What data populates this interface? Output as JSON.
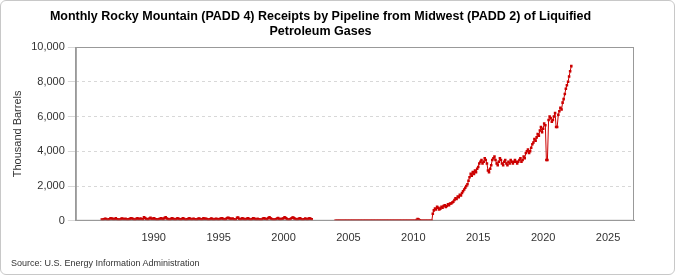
{
  "chart_data": {
    "type": "line",
    "title": [
      "Monthly Rocky Mountain (PADD 4) Receipts by Pipeline from Midwest (PADD 2) of Liquified",
      "Petroleum Gases"
    ],
    "y_label": "Thousand Barrels",
    "annotation": "Source: U.S. Energy Information Administration",
    "color": "#cc0000",
    "marker": "square",
    "line_style": "solid",
    "grid": true,
    "xlim": [
      1984,
      2027
    ],
    "xticks": [
      1990,
      1995,
      2000,
      2005,
      2010,
      2015,
      2020,
      2025
    ],
    "ylim": [
      0,
      10000
    ],
    "yticks": [
      0,
      {
        "value": 2000,
        "label": "2,000"
      },
      {
        "value": 4000,
        "label": "4,000"
      },
      {
        "value": 6000,
        "label": "6,000"
      },
      {
        "value": 8000,
        "label": "8,000"
      },
      {
        "value": 10000,
        "label": "10,000"
      }
    ],
    "x": [
      1986,
      1986.08,
      1986.17,
      1986.25,
      1986.33,
      1986.42,
      1986.5,
      1986.58,
      1986.67,
      1986.75,
      1986.83,
      1986.92,
      1987,
      1987.08,
      1987.17,
      1987.25,
      1987.33,
      1987.42,
      1987.5,
      1987.58,
      1987.67,
      1987.75,
      1987.83,
      1987.92,
      1988,
      1988.08,
      1988.17,
      1988.25,
      1988.33,
      1988.42,
      1988.5,
      1988.58,
      1988.67,
      1988.75,
      1988.83,
      1988.92,
      1989,
      1989.08,
      1989.17,
      1989.25,
      1989.33,
      1989.42,
      1989.5,
      1989.58,
      1989.67,
      1989.75,
      1989.83,
      1989.92,
      1990,
      1990.08,
      1990.17,
      1990.25,
      1990.33,
      1990.42,
      1990.5,
      1990.58,
      1990.67,
      1990.75,
      1990.83,
      1990.92,
      1991,
      1991.08,
      1991.17,
      1991.25,
      1991.33,
      1991.42,
      1991.5,
      1991.58,
      1991.67,
      1991.75,
      1991.83,
      1991.92,
      1992,
      1992.08,
      1992.17,
      1992.25,
      1992.33,
      1992.42,
      1992.5,
      1992.58,
      1992.67,
      1992.75,
      1992.83,
      1992.92,
      1993,
      1993.08,
      1993.17,
      1993.25,
      1993.33,
      1993.42,
      1993.5,
      1993.58,
      1993.67,
      1993.75,
      1993.83,
      1993.92,
      1994,
      1994.08,
      1994.17,
      1994.25,
      1994.33,
      1994.42,
      1994.5,
      1994.58,
      1994.67,
      1994.75,
      1994.83,
      1994.92,
      1995,
      1995.08,
      1995.17,
      1995.25,
      1995.33,
      1995.42,
      1995.5,
      1995.58,
      1995.67,
      1995.75,
      1995.83,
      1995.92,
      1996,
      1996.08,
      1996.17,
      1996.25,
      1996.33,
      1996.42,
      1996.5,
      1996.58,
      1996.67,
      1996.75,
      1996.83,
      1996.92,
      1997,
      1997.08,
      1997.17,
      1997.25,
      1997.33,
      1997.42,
      1997.5,
      1997.58,
      1997.67,
      1997.75,
      1997.83,
      1997.92,
      1998,
      1998.08,
      1998.17,
      1998.25,
      1998.33,
      1998.42,
      1998.5,
      1998.58,
      1998.67,
      1998.75,
      1998.83,
      1998.92,
      1999,
      1999.08,
      1999.17,
      1999.25,
      1999.33,
      1999.42,
      1999.5,
      1999.58,
      1999.67,
      1999.75,
      1999.83,
      1999.92,
      2000,
      2000.08,
      2000.17,
      2000.25,
      2000.33,
      2000.42,
      2000.5,
      2000.58,
      2000.67,
      2000.75,
      2000.83,
      2000.92,
      2001,
      2001.08,
      2001.17,
      2001.25,
      2001.33,
      2001.42,
      2001.5,
      2001.58,
      2001.67,
      2001.75,
      2001.83,
      2001.92,
      2002,
      2002.08,
      2002.17,
      2002.25,
      2002.33,
      2002.42,
      2002.5,
      2002.58,
      2002.67,
      2002.75,
      2002.83,
      2002.92,
      2003,
      2003.08,
      2003.17,
      2003.25,
      2003.33,
      2003.42,
      2003.5,
      2003.58,
      2003.67,
      2003.75,
      2003.83,
      2003.92,
      2004,
      2004.08,
      2004.17,
      2004.25,
      2004.33,
      2004.42,
      2004.5,
      2004.58,
      2004.67,
      2004.75,
      2004.83,
      2004.92,
      2005,
      2005.08,
      2005.17,
      2005.25,
      2005.33,
      2005.42,
      2005.5,
      2005.58,
      2005.67,
      2005.75,
      2005.83,
      2005.92,
      2006,
      2006.08,
      2006.17,
      2006.25,
      2006.33,
      2006.42,
      2006.5,
      2006.58,
      2006.67,
      2006.75,
      2006.83,
      2006.92,
      2007,
      2007.08,
      2007.17,
      2007.25,
      2007.33,
      2007.42,
      2007.5,
      2007.58,
      2007.67,
      2007.75,
      2007.83,
      2007.92,
      2008,
      2008.08,
      2008.17,
      2008.25,
      2008.33,
      2008.42,
      2008.5,
      2008.58,
      2008.67,
      2008.75,
      2008.83,
      2008.92,
      2009,
      2009.08,
      2009.17,
      2009.25,
      2009.33,
      2009.42,
      2009.5,
      2009.58,
      2009.67,
      2009.75,
      2009.83,
      2009.92,
      2010,
      2010.08,
      2010.17,
      2010.25,
      2010.33,
      2010.42,
      2010.5,
      2010.58,
      2010.67,
      2010.75,
      2010.83,
      2010.92,
      2011,
      2011.08,
      2011.17,
      2011.25,
      2011.33,
      2011.42,
      2011.5,
      2011.58,
      2011.67,
      2011.75,
      2011.83,
      2011.92,
      2012,
      2012.08,
      2012.17,
      2012.25,
      2012.33,
      2012.42,
      2012.5,
      2012.58,
      2012.67,
      2012.75,
      2012.83,
      2012.92,
      2013,
      2013.08,
      2013.17,
      2013.25,
      2013.33,
      2013.42,
      2013.5,
      2013.58,
      2013.67,
      2013.75,
      2013.83,
      2013.92,
      2014,
      2014.08,
      2014.17,
      2014.25,
      2014.33,
      2014.42,
      2014.5,
      2014.58,
      2014.67,
      2014.75,
      2014.83,
      2014.92,
      2015,
      2015.08,
      2015.17,
      2015.25,
      2015.33,
      2015.42,
      2015.5,
      2015.58,
      2015.67,
      2015.75,
      2015.83,
      2015.92,
      2016,
      2016.08,
      2016.17,
      2016.25,
      2016.33,
      2016.42,
      2016.5,
      2016.58,
      2016.67,
      2016.75,
      2016.83,
      2016.92,
      2017,
      2017.08,
      2017.17,
      2017.25,
      2017.33,
      2017.42,
      2017.5,
      2017.58,
      2017.67,
      2017.75,
      2017.83,
      2017.92,
      2018,
      2018.08,
      2018.17,
      2018.25,
      2018.33,
      2018.42,
      2018.5,
      2018.58,
      2018.67,
      2018.75,
      2018.83,
      2018.92,
      2019,
      2019.08,
      2019.17,
      2019.25,
      2019.33,
      2019.42,
      2019.5,
      2019.58,
      2019.67,
      2019.75,
      2019.83,
      2019.92,
      2020,
      2020.08,
      2020.17,
      2020.25,
      2020.33,
      2020.42,
      2020.5,
      2020.58,
      2020.67,
      2020.75,
      2020.83,
      2020.92,
      2021,
      2021.08,
      2021.17,
      2021.25,
      2021.33,
      2021.42,
      2021.5,
      2021.58,
      2021.67,
      2021.75,
      2021.83,
      2021.92,
      2022,
      2022.08,
      2022.17
    ],
    "values": [
      80,
      60,
      90,
      120,
      100,
      70,
      50,
      90,
      150,
      130,
      110,
      90,
      100,
      140,
      90,
      70,
      60,
      80,
      110,
      130,
      100,
      90,
      120,
      80,
      70,
      90,
      110,
      150,
      130,
      100,
      80,
      60,
      120,
      140,
      90,
      110,
      120,
      100,
      80,
      200,
      160,
      110,
      90,
      70,
      130,
      180,
      120,
      100,
      150,
      110,
      90,
      80,
      70,
      100,
      120,
      140,
      110,
      90,
      160,
      200,
      130,
      100,
      80,
      70,
      110,
      140,
      120,
      90,
      80,
      100,
      150,
      120,
      90,
      80,
      100,
      140,
      120,
      70,
      60,
      90,
      110,
      150,
      100,
      80,
      100,
      120,
      90,
      70,
      80,
      110,
      130,
      100,
      80,
      90,
      140,
      110,
      120,
      100,
      80,
      60,
      90,
      130,
      110,
      80,
      70,
      100,
      120,
      90,
      80,
      100,
      130,
      150,
      120,
      90,
      70,
      110,
      160,
      180,
      140,
      110,
      100,
      130,
      90,
      60,
      80,
      170,
      190,
      120,
      80,
      100,
      140,
      110,
      90,
      80,
      120,
      150,
      110,
      70,
      60,
      100,
      140,
      130,
      90,
      80,
      110,
      90,
      70,
      60,
      80,
      130,
      150,
      120,
      100,
      80,
      160,
      200,
      140,
      100,
      80,
      60,
      70,
      90,
      130,
      160,
      110,
      90,
      100,
      120,
      150,
      200,
      160,
      110,
      80,
      60,
      90,
      130,
      170,
      190,
      140,
      100,
      90,
      80,
      120,
      150,
      110,
      70,
      60,
      90,
      130,
      100,
      80,
      110,
      140,
      120,
      90,
      null,
      null,
      null,
      null,
      null,
      null,
      null,
      null,
      null,
      null,
      null,
      null,
      null,
      null,
      null,
      null,
      null,
      null,
      null,
      null,
      null,
      0,
      0,
      0,
      0,
      0,
      0,
      0,
      0,
      0,
      0,
      0,
      0,
      0,
      0,
      0,
      0,
      0,
      0,
      0,
      0,
      0,
      0,
      0,
      0,
      0,
      0,
      0,
      0,
      0,
      0,
      0,
      0,
      0,
      0,
      0,
      0,
      0,
      0,
      0,
      0,
      0,
      0,
      0,
      0,
      0,
      0,
      0,
      0,
      0,
      0,
      0,
      0,
      0,
      0,
      0,
      0,
      0,
      0,
      0,
      0,
      0,
      0,
      0,
      0,
      0,
      0,
      0,
      0,
      0,
      0,
      0,
      0,
      0,
      0,
      0,
      50,
      100,
      80,
      30,
      0,
      0,
      0,
      0,
      0,
      0,
      0,
      0,
      0,
      0,
      0,
      400,
      600,
      700,
      650,
      800,
      750,
      650,
      700,
      800,
      750,
      850,
      900,
      800,
      850,
      950,
      900,
      1000,
      1000,
      1050,
      1100,
      1200,
      1300,
      1250,
      1400,
      1350,
      1500,
      1450,
      1600,
      1700,
      1800,
      1900,
      2000,
      2100,
      2300,
      2500,
      2700,
      2600,
      2800,
      2700,
      2900,
      2800,
      3000,
      3100,
      3300,
      3400,
      3500,
      3300,
      3400,
      3600,
      3500,
      3300,
      2900,
      2800,
      3000,
      3200,
      3500,
      3600,
      3700,
      3500,
      3300,
      3200,
      3400,
      3600,
      3500,
      3300,
      3200,
      3400,
      3500,
      3300,
      3200,
      3400,
      3300,
      3500,
      3400,
      3300,
      3400,
      3500,
      3400,
      3300,
      3400,
      3500,
      3600,
      3400,
      3500,
      3700,
      3600,
      3900,
      4000,
      4100,
      3900,
      4000,
      4200,
      4400,
      4500,
      4700,
      4600,
      4800,
      5000,
      4900,
      5200,
      5400,
      5100,
      5300,
      5600,
      5500,
      3500,
      3500,
      5800,
      6000,
      5900,
      5700,
      5800,
      6000,
      6200,
      5400,
      5400,
      6100,
      6300,
      6500,
      6400,
      6800,
      7000,
      7300,
      7600,
      7800,
      8000,
      8300,
      8600,
      8900
    ]
  }
}
